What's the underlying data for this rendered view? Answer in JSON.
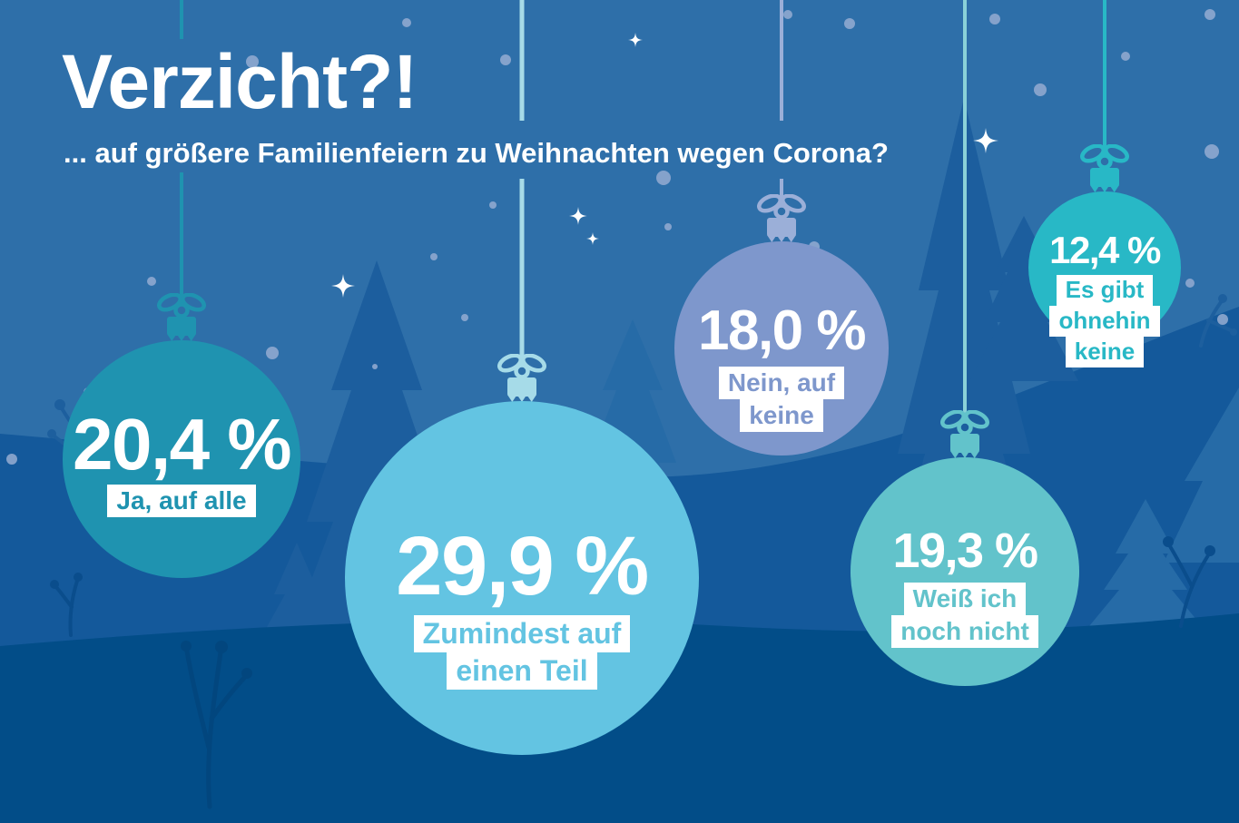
{
  "title": "Verzicht?!",
  "subtitle": "... auf größere Familienfeiern zu Weihnachten wegen Corona?",
  "chart_data": {
    "type": "pie",
    "title": "Verzicht?!",
    "subtitle": "... auf größere Familienfeiern zu Weihnachten wegen Corona?",
    "unit": "%",
    "categories": [
      "Ja, auf alle",
      "Zumindest auf einen Teil",
      "Nein, auf keine",
      "Weiß ich noch nicht",
      "Es gibt ohnehin keine"
    ],
    "values": [
      20.4,
      29.9,
      18.0,
      19.3,
      12.4
    ],
    "value_labels": [
      "20,4 %",
      "29,9 %",
      "18,0 %",
      "19,3 %",
      "12,4 %"
    ],
    "colors": [
      "#1f93b0",
      "#63c4e2",
      "#7e97cc",
      "#62c3cb",
      "#28b8c6"
    ],
    "legend_position": "inside-bubbles",
    "notes": "bubble size proportional to percentage; drawn as hanging christmas baubles"
  },
  "ornaments": [
    {
      "value": 20.4,
      "value_label": "20,4 %",
      "label_lines": [
        "Ja, auf alle"
      ],
      "color": "#1f93b0",
      "string_color": "#1f93b0",
      "hanger_color": "#1f93b0"
    },
    {
      "value": 29.9,
      "value_label": "29,9 %",
      "label_lines": [
        "Zumindest auf",
        "einen Teil"
      ],
      "color": "#63c4e2",
      "string_color": "#a6dbe8",
      "hanger_color": "#a6dbe8"
    },
    {
      "value": 18.0,
      "value_label": "18,0 %",
      "label_lines": [
        "Nein, auf",
        "keine"
      ],
      "color": "#7e97cc",
      "string_color": "#9bafd8",
      "hanger_color": "#9bafd8"
    },
    {
      "value": 19.3,
      "value_label": "19,3 %",
      "label_lines": [
        "Weiß ich",
        "noch nicht"
      ],
      "color": "#62c3cb",
      "string_color": "#8bd1d8",
      "hanger_color": "#62c3cb"
    },
    {
      "value": 12.4,
      "value_label": "12,4 %",
      "label_lines": [
        "Es gibt",
        "ohnehin",
        "keine"
      ],
      "color": "#28b8c6",
      "string_color": "#28b8c6",
      "hanger_color": "#28b8c6"
    }
  ],
  "background_colors": {
    "sky": "#2e6fa9",
    "hill_mid": "#14599b",
    "hill_dark": "#024d88",
    "tree_dark": "#1c5e9e",
    "tree_light": "#266ba7",
    "snow": "#8fa8cf"
  }
}
